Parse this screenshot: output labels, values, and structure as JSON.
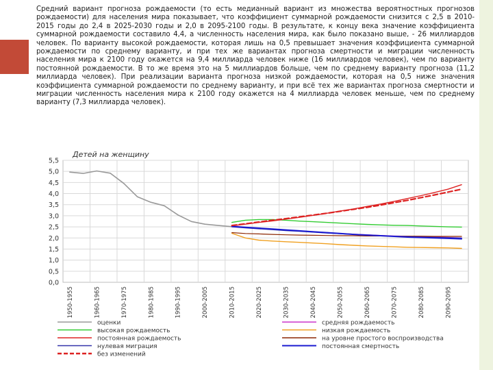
{
  "page": {
    "paragraph": "Средний вариант прогноза рождаемости (то есть медианный вариант из множества вероятностных прогнозов рождаемости) для населения мира показывает, что коэффициент суммарной рождаемости снизится с 2,5 в 2010-2015 годы до 2,4 в 2025-2030 годы и 2,0 в 2095-2100 годы. В результате, к концу века значение коэффициента суммарной рождаемости составило 4,4, а численность населения мира, как было показано выше, - 26 миллиардов человек. По варианту высокой рождаемости, которая лишь на 0,5 превышает значения коэффициента суммарной рождаемости по среднему варианту, и при тех же вариантах прогноза смертности и миграции численность населения мира к 2100 году окажется на 9,4 миллиарда человек ниже (16 миллиардов человек), чем по варианту постоянной рождаемости. В то же время это на 5 миллиардов больше, чем по среднему варианту прогноза (11,2 миллиарда человек). При реализации варианта прогноза низкой рождаемости, которая на 0,5 ниже значения коэффициента суммарной рождаемости по среднему варианту, и при всё тех же вариантах прогноза смертности и миграции численность населения мира к 2100 году окажется на 4 миллиарда человек меньше, чем по среднему варианту (7,3 миллиарда человек)."
  },
  "colors": {
    "accent_tab": "#c24a37",
    "side_bar": "#eef3df"
  },
  "chart_data": {
    "type": "line",
    "title": "Детей на женщину",
    "xlabel": "",
    "ylabel": "",
    "ylim": [
      0,
      5.5
    ],
    "yticks": [
      "0,0",
      "0,5",
      "1,0",
      "1,5",
      "2,0",
      "2,5",
      "3,0",
      "3,5",
      "4,0",
      "4,5",
      "5,0",
      "5,5"
    ],
    "grid": true,
    "legend_position": "bottom",
    "categories": [
      "1950-1955",
      "1955-1960",
      "1960-1965",
      "1965-1970",
      "1970-1975",
      "1975-1980",
      "1980-1985",
      "1985-1990",
      "1990-1995",
      "1995-2000",
      "2000-2005",
      "2005-2010",
      "2010-2015",
      "2015-2020",
      "2020-2025",
      "2025-2030",
      "2030-2035",
      "2035-2040",
      "2040-2045",
      "2045-2050",
      "2050-2055",
      "2055-2060",
      "2060-2065",
      "2065-2070",
      "2070-2075",
      "2075-2080",
      "2080-2085",
      "2085-2090",
      "2090-2095",
      "2095-2100"
    ],
    "tick_labels": [
      "1950-1955",
      "1960-1965",
      "1970-1975",
      "1980-1985",
      "1990-1995",
      "2000-2005",
      "2010-2015",
      "2020-2025",
      "2030-2035",
      "2040-2045",
      "2050-2055",
      "2060-2065",
      "2070-2075",
      "2080-2085",
      "2090-2095"
    ],
    "series": [
      {
        "name": "оценки",
        "color": "#999999",
        "dash": false,
        "width": 1.6,
        "values": [
          4.97,
          4.91,
          5.02,
          4.92,
          4.46,
          3.86,
          3.61,
          3.45,
          3.04,
          2.74,
          2.62,
          2.56,
          2.51,
          null,
          null,
          null,
          null,
          null,
          null,
          null,
          null,
          null,
          null,
          null,
          null,
          null,
          null,
          null,
          null,
          null
        ]
      },
      {
        "name": "средняя рождаемость",
        "color": "#cc33cc",
        "dash": false,
        "width": 1.4,
        "values": [
          null,
          null,
          null,
          null,
          null,
          null,
          null,
          null,
          null,
          null,
          null,
          null,
          2.51,
          2.47,
          2.43,
          2.4,
          2.36,
          2.32,
          2.28,
          2.24,
          2.2,
          2.17,
          2.14,
          2.11,
          2.09,
          2.07,
          2.05,
          2.04,
          2.02,
          2.0
        ]
      },
      {
        "name": "высокая рождаемость",
        "color": "#33cc33",
        "dash": false,
        "width": 1.4,
        "values": [
          null,
          null,
          null,
          null,
          null,
          null,
          null,
          null,
          null,
          null,
          null,
          null,
          2.7,
          2.8,
          2.83,
          2.83,
          2.8,
          2.76,
          2.73,
          2.7,
          2.67,
          2.64,
          2.61,
          2.59,
          2.57,
          2.56,
          2.54,
          2.52,
          2.5,
          2.49
        ]
      },
      {
        "name": "низкая рождаемость",
        "color": "#f0a020",
        "dash": false,
        "width": 1.4,
        "values": [
          null,
          null,
          null,
          null,
          null,
          null,
          null,
          null,
          null,
          null,
          null,
          null,
          2.21,
          2.0,
          1.9,
          1.86,
          1.83,
          1.8,
          1.77,
          1.74,
          1.7,
          1.67,
          1.64,
          1.62,
          1.6,
          1.58,
          1.57,
          1.56,
          1.55,
          1.53
        ]
      },
      {
        "name": "постоянная рождаемость",
        "color": "#dd2222",
        "dash": false,
        "width": 1.4,
        "values": [
          null,
          null,
          null,
          null,
          null,
          null,
          null,
          null,
          null,
          null,
          null,
          null,
          2.55,
          2.62,
          2.7,
          2.77,
          2.85,
          2.93,
          3.02,
          3.11,
          3.21,
          3.31,
          3.42,
          3.53,
          3.65,
          3.78,
          3.91,
          4.05,
          4.2,
          4.4
        ]
      },
      {
        "name": "на уровне простого воспроизводства",
        "color": "#8b2500",
        "dash": false,
        "width": 1.2,
        "values": [
          null,
          null,
          null,
          null,
          null,
          null,
          null,
          null,
          null,
          null,
          null,
          null,
          2.24,
          2.2,
          2.18,
          2.16,
          2.14,
          2.13,
          2.12,
          2.11,
          2.1,
          2.1,
          2.09,
          2.09,
          2.08,
          2.08,
          2.08,
          2.07,
          2.07,
          2.07
        ]
      },
      {
        "name": "нулевая миграция",
        "color": "#3333aa",
        "dash": false,
        "width": 1.2,
        "values": [
          null,
          null,
          null,
          null,
          null,
          null,
          null,
          null,
          null,
          null,
          null,
          null,
          2.5,
          2.45,
          2.41,
          2.37,
          2.33,
          2.3,
          2.26,
          2.22,
          2.19,
          2.16,
          2.13,
          2.1,
          2.08,
          2.06,
          2.04,
          2.03,
          2.01,
          2.0
        ]
      },
      {
        "name": "постоянная смертность",
        "color": "#1a1ad0",
        "dash": false,
        "width": 2.0,
        "values": [
          null,
          null,
          null,
          null,
          null,
          null,
          null,
          null,
          null,
          null,
          null,
          null,
          2.52,
          2.48,
          2.44,
          2.4,
          2.36,
          2.32,
          2.28,
          2.24,
          2.2,
          2.16,
          2.13,
          2.1,
          2.07,
          2.04,
          2.02,
          2.0,
          1.98,
          1.96
        ]
      },
      {
        "name": "без изменений",
        "color": "#dd2222",
        "dash": true,
        "width": 2.2,
        "values": [
          null,
          null,
          null,
          null,
          null,
          null,
          null,
          null,
          null,
          null,
          null,
          null,
          2.56,
          2.64,
          2.72,
          2.8,
          2.87,
          2.95,
          3.03,
          3.11,
          3.2,
          3.29,
          3.38,
          3.48,
          3.59,
          3.7,
          3.82,
          3.94,
          4.07,
          4.2
        ]
      }
    ],
    "legend": [
      {
        "name": "оценки",
        "column": 0
      },
      {
        "name": "средняя рождаемость",
        "column": 1
      },
      {
        "name": "высокая рождаемость",
        "column": 0
      },
      {
        "name": "низкая рождаемость",
        "column": 1
      },
      {
        "name": "постоянная рождаемость",
        "column": 0
      },
      {
        "name": "на уровне простого воспроизводства",
        "column": 1
      },
      {
        "name": "нулевая миграция",
        "column": 0
      },
      {
        "name": "постоянная смертность",
        "column": 1
      },
      {
        "name": "без изменений",
        "column": 0
      }
    ]
  }
}
